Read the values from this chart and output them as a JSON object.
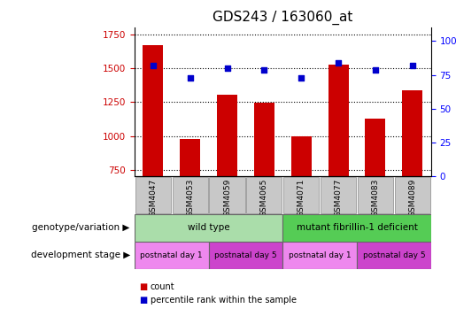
{
  "title": "GDS243 / 163060_at",
  "samples": [
    "GSM4047",
    "GSM4053",
    "GSM4059",
    "GSM4065",
    "GSM4071",
    "GSM4077",
    "GSM4083",
    "GSM4089"
  ],
  "counts": [
    1670,
    975,
    1305,
    1245,
    1000,
    1525,
    1130,
    1340
  ],
  "percentiles": [
    82,
    73,
    80,
    79,
    73,
    84,
    79,
    82
  ],
  "ylim_left": [
    700,
    1800
  ],
  "ylim_right": [
    0,
    110
  ],
  "yticks_left": [
    750,
    1000,
    1250,
    1500,
    1750
  ],
  "ytick_labels_left": [
    "750",
    "1000",
    "1250",
    "1500",
    "1750"
  ],
  "yticks_right": [
    0,
    25,
    50,
    75,
    100
  ],
  "ytick_labels_right": [
    "0",
    "25",
    "50",
    "75",
    "100%"
  ],
  "bar_color": "#cc0000",
  "scatter_color": "#0000cc",
  "title_fontsize": 11,
  "genotype_groups": [
    {
      "label": "wild type",
      "start": 0,
      "end": 4,
      "color": "#aaddaa"
    },
    {
      "label": "mutant fibrillin-1 deficient",
      "start": 4,
      "end": 8,
      "color": "#55cc55"
    }
  ],
  "development_groups": [
    {
      "label": "postnatal day 1",
      "start": 0,
      "end": 2,
      "color": "#ee88ee"
    },
    {
      "label": "postnatal day 5",
      "start": 2,
      "end": 4,
      "color": "#cc44cc"
    },
    {
      "label": "postnatal day 1",
      "start": 4,
      "end": 6,
      "color": "#ee88ee"
    },
    {
      "label": "postnatal day 5",
      "start": 6,
      "end": 8,
      "color": "#cc44cc"
    }
  ],
  "legend_count_color": "#cc0000",
  "legend_pct_color": "#0000cc",
  "xlabel_genotype": "genotype/variation",
  "xlabel_dev": "development stage",
  "tick_label_bg": "#c8c8c8"
}
